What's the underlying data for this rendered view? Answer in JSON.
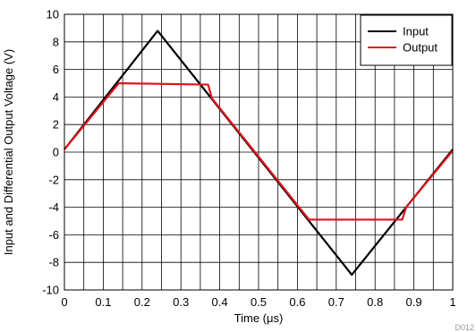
{
  "chart_data": {
    "type": "line",
    "xlabel": "Time (μs)",
    "ylabel": "Input and Differential Output Voltage (V)",
    "xlim": [
      0,
      1
    ],
    "ylim": [
      -10,
      10
    ],
    "xticks": [
      0,
      0.1,
      0.2,
      0.3,
      0.4,
      0.5,
      0.6,
      0.7,
      0.8,
      0.9,
      1
    ],
    "yticks": [
      10,
      8,
      6,
      4,
      2,
      0,
      -2,
      -4,
      -6,
      -8,
      -10
    ],
    "xtick_labels": [
      "0",
      "0.1",
      "0.2",
      "0.3",
      "0.4",
      "0.5",
      "0.6",
      "0.7",
      "0.8",
      "0.9",
      "1"
    ],
    "ytick_labels": [
      "10",
      "8",
      "6",
      "4",
      "2",
      "0",
      "-2",
      "-4",
      "-6",
      "-8",
      "-10"
    ],
    "grid": true,
    "legend_position": "top-right",
    "series": [
      {
        "name": "Input",
        "color": "#000000",
        "x": [
          0,
          0.24,
          0.74,
          1
        ],
        "y": [
          0.2,
          8.8,
          -8.9,
          0.2
        ]
      },
      {
        "name": "Output",
        "color": "#e0131b",
        "x": [
          0,
          0.14,
          0.37,
          0.38,
          0.63,
          0.87,
          0.88,
          1
        ],
        "y": [
          0.2,
          5.0,
          4.9,
          3.9,
          -4.9,
          -4.9,
          -4.0,
          0.1
        ]
      }
    ],
    "footnote": "D012"
  }
}
